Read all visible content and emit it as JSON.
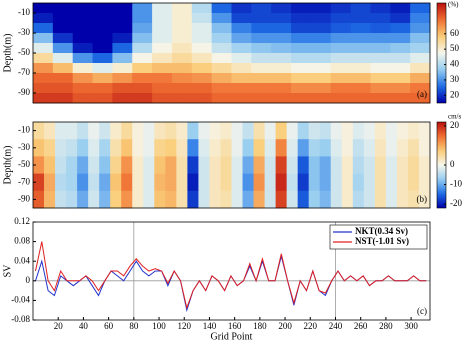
{
  "chart_data": [
    {
      "type": "heatmap",
      "ylabel": "Depth(m)",
      "panel_label": "(a)",
      "colorbar_label": "(%)",
      "xlim": [
        0,
        315
      ],
      "ylim": [
        0,
        -100
      ],
      "yticks": [
        -10,
        -30,
        -50,
        -70,
        -90
      ],
      "clim": [
        15,
        80
      ],
      "cticks": [
        20,
        30,
        40,
        50,
        60
      ],
      "z": [
        [
          15,
          10,
          8,
          8,
          12,
          30,
          45,
          50,
          40,
          25,
          20,
          22,
          20,
          18,
          18,
          20,
          22,
          20,
          18,
          25
        ],
        [
          18,
          12,
          8,
          8,
          12,
          30,
          45,
          50,
          42,
          30,
          22,
          22,
          22,
          20,
          20,
          22,
          22,
          22,
          20,
          28
        ],
        [
          25,
          15,
          10,
          10,
          15,
          32,
          45,
          50,
          45,
          35,
          28,
          25,
          25,
          22,
          22,
          24,
          25,
          24,
          25,
          30
        ],
        [
          35,
          20,
          12,
          12,
          18,
          35,
          45,
          50,
          45,
          38,
          32,
          30,
          30,
          28,
          28,
          30,
          30,
          30,
          30,
          35
        ],
        [
          45,
          30,
          18,
          15,
          25,
          40,
          48,
          52,
          48,
          42,
          38,
          36,
          35,
          34,
          34,
          35,
          35,
          35,
          36,
          38
        ],
        [
          55,
          45,
          30,
          25,
          35,
          48,
          52,
          55,
          52,
          48,
          45,
          42,
          42,
          40,
          40,
          42,
          42,
          42,
          42,
          45
        ],
        [
          65,
          60,
          50,
          45,
          50,
          58,
          60,
          60,
          58,
          55,
          52,
          50,
          50,
          48,
          48,
          50,
          50,
          48,
          48,
          52
        ],
        [
          70,
          70,
          65,
          62,
          65,
          68,
          68,
          66,
          65,
          62,
          60,
          60,
          60,
          58,
          58,
          60,
          60,
          58,
          58,
          62
        ],
        [
          72,
          72,
          70,
          70,
          72,
          72,
          70,
          70,
          70,
          68,
          68,
          68,
          68,
          66,
          66,
          68,
          68,
          66,
          66,
          68
        ],
        [
          75,
          75,
          72,
          72,
          75,
          75,
          72,
          72,
          72,
          70,
          70,
          70,
          70,
          70,
          70,
          70,
          70,
          70,
          70,
          70
        ]
      ]
    },
    {
      "type": "heatmap",
      "ylabel": "Depth(m)",
      "panel_label": "(b)",
      "colorbar_label": "cm/s",
      "xlim": [
        0,
        315
      ],
      "ylim": [
        0,
        -100
      ],
      "yticks": [
        -10,
        -30,
        -50,
        -70,
        -90
      ],
      "clim": [
        -22,
        22
      ],
      "cticks": [
        20,
        0,
        -10,
        -20
      ],
      "z": [
        [
          5,
          3,
          -2,
          -2,
          -4,
          -1,
          -3,
          2,
          5,
          1,
          -1,
          3,
          4,
          2,
          -7,
          -1,
          1,
          2,
          -1,
          -4,
          4,
          -1,
          7,
          -1,
          -6,
          -3,
          -4,
          -1,
          1,
          -2,
          -1,
          2,
          -1,
          1,
          2,
          1
        ],
        [
          8,
          6,
          -3,
          -4,
          -7,
          -2,
          -6,
          4,
          8,
          1,
          -1,
          6,
          7,
          3,
          -13,
          -2,
          2,
          4,
          -1,
          -7,
          7,
          -2,
          13,
          -2,
          -11,
          -6,
          -7,
          -2,
          1,
          -4,
          -2,
          3,
          -1,
          2,
          4,
          1
        ],
        [
          12,
          8,
          -4,
          -6,
          -10,
          -3,
          -8,
          6,
          12,
          2,
          -2,
          8,
          10,
          4,
          -18,
          -3,
          3,
          5,
          -2,
          -10,
          10,
          -3,
          18,
          -3,
          -16,
          -8,
          -10,
          -3,
          2,
          -5,
          -3,
          4,
          -2,
          3,
          5,
          2
        ],
        [
          18,
          10,
          -5,
          -6,
          -12,
          -4,
          -10,
          8,
          14,
          2,
          -2,
          9,
          10,
          4,
          -20,
          -3,
          3,
          5,
          -2,
          -12,
          12,
          -3,
          20,
          -4,
          -18,
          -8,
          -10,
          -3,
          2,
          -6,
          -3,
          4,
          -2,
          3,
          5,
          2
        ],
        [
          16,
          9,
          -4,
          -5,
          -10,
          -3,
          -9,
          7,
          12,
          2,
          -2,
          8,
          9,
          4,
          -18,
          -3,
          3,
          4,
          -2,
          -10,
          10,
          -3,
          18,
          -3,
          -16,
          -7,
          -9,
          -3,
          2,
          -5,
          -3,
          4,
          -2,
          3,
          4,
          2
        ]
      ]
    },
    {
      "type": "line",
      "ylabel": "SV",
      "xlabel": "Grid Point",
      "panel_label": "(c)",
      "legend": "upper right",
      "xlim": [
        0,
        315
      ],
      "xticks": [
        20,
        40,
        60,
        80,
        100,
        120,
        140,
        160,
        180,
        200,
        220,
        240,
        260,
        280,
        300
      ],
      "ylim": [
        -0.08,
        0.12
      ],
      "yticks": [
        0.12,
        0.08,
        0.04,
        0,
        -0.04,
        -0.08
      ],
      "vlines": [
        80,
        240
      ],
      "hlines": [
        0
      ],
      "x": [
        2,
        7,
        12,
        17,
        22,
        27,
        32,
        37,
        42,
        47,
        52,
        57,
        62,
        67,
        72,
        77,
        82,
        87,
        92,
        97,
        102,
        107,
        112,
        117,
        122,
        127,
        132,
        137,
        142,
        147,
        152,
        157,
        162,
        167,
        172,
        177,
        182,
        187,
        192,
        197,
        202,
        207,
        212,
        217,
        222,
        227,
        232,
        237,
        242,
        247,
        252,
        257,
        262,
        267,
        272,
        277,
        282,
        287,
        292,
        297,
        302,
        307,
        312
      ],
      "series": [
        {
          "name": "NKT(0.34 Sv)",
          "color": "#2233cc",
          "values": [
            0.0,
            0.04,
            -0.02,
            -0.03,
            0.01,
            0.0,
            -0.01,
            0.0,
            0.01,
            -0.01,
            -0.03,
            0.0,
            0.02,
            0.01,
            0.0,
            0.02,
            0.04,
            0.02,
            0.01,
            0.02,
            0.02,
            -0.01,
            0.02,
            0.0,
            -0.06,
            -0.02,
            0.0,
            -0.02,
            0.01,
            0.0,
            -0.02,
            0.01,
            -0.01,
            0.0,
            0.03,
            0.0,
            0.04,
            0.0,
            0.0,
            0.05,
            0.0,
            -0.05,
            0.0,
            -0.02,
            0.02,
            -0.02,
            -0.03,
            0.0,
            0.02,
            0.0,
            0.01,
            0.0,
            0.01,
            -0.01,
            0.0,
            0.0,
            0.01,
            0.0,
            0.0,
            0.0,
            0.01,
            0.0,
            0.0
          ]
        },
        {
          "name": "NST(-1.01 Sv)",
          "color": "#e02020",
          "values": [
            0.02,
            0.08,
            0.0,
            -0.02,
            0.02,
            0.0,
            0.0,
            0.0,
            0.01,
            0.0,
            -0.02,
            0.0,
            0.02,
            0.02,
            0.01,
            0.03,
            0.045,
            0.03,
            0.02,
            0.025,
            0.02,
            -0.005,
            0.02,
            0.0,
            -0.055,
            -0.02,
            0.0,
            -0.02,
            0.01,
            0.0,
            -0.02,
            0.01,
            -0.01,
            0.0,
            0.035,
            0.0,
            0.045,
            0.0,
            0.0,
            0.055,
            0.0,
            -0.045,
            0.0,
            -0.02,
            0.02,
            -0.02,
            -0.025,
            0.0,
            0.02,
            0.0,
            0.01,
            0.0,
            0.01,
            -0.01,
            0.0,
            0.0,
            0.01,
            0.0,
            0.0,
            0.0,
            0.01,
            0.0,
            0.0
          ]
        }
      ]
    }
  ]
}
